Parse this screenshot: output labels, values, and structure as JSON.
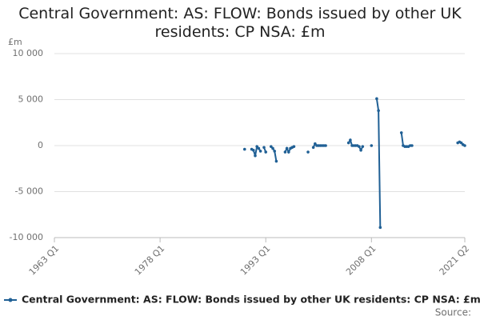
{
  "chart_data": {
    "type": "line",
    "title": "Central Government: AS: FLOW: Bonds issued by other UK residents: CP NSA: £m",
    "y_label": "£m",
    "source": "Source:",
    "categories": [
      "1963 Q1",
      null,
      null,
      null,
      null,
      null,
      null,
      null,
      null,
      null,
      null,
      null,
      null,
      null,
      null,
      null,
      null,
      null,
      null,
      null,
      null,
      null,
      null,
      null,
      null,
      null,
      null,
      null,
      null,
      null,
      null,
      null,
      null,
      null,
      null,
      null,
      null,
      null,
      null,
      null,
      null,
      null,
      null,
      null,
      null,
      null,
      null,
      null,
      null,
      null,
      null,
      null,
      null,
      null,
      null,
      null,
      null,
      null,
      null,
      null,
      "1978 Q1",
      null,
      null,
      null,
      null,
      null,
      null,
      null,
      null,
      null,
      null,
      null,
      null,
      null,
      null,
      null,
      null,
      null,
      null,
      null,
      null,
      null,
      null,
      null,
      null,
      null,
      null,
      null,
      null,
      null,
      null,
      null,
      null,
      null,
      null,
      null,
      null,
      null,
      null,
      null,
      null,
      null,
      null,
      null,
      null,
      null,
      null,
      null,
      null,
      null,
      null,
      null,
      null,
      null,
      null,
      null,
      null,
      null,
      null,
      null,
      "1993 Q1",
      null,
      null,
      null,
      null,
      null,
      null,
      null,
      null,
      null,
      null,
      null,
      null,
      null,
      null,
      null,
      null,
      null,
      null,
      null,
      null,
      null,
      null,
      null,
      null,
      null,
      null,
      null,
      null,
      null,
      null,
      null,
      null,
      null,
      null,
      null,
      null,
      null,
      null,
      null,
      null,
      null,
      null,
      null,
      null,
      null,
      null,
      null,
      null,
      null,
      null,
      null,
      null,
      null,
      null,
      null,
      null,
      null,
      null,
      null,
      "2008 Q1",
      null,
      null,
      null,
      null,
      null,
      null,
      null,
      null,
      null,
      null,
      null,
      null,
      null,
      null,
      null,
      null,
      null,
      null,
      null,
      null,
      null,
      null,
      null,
      null,
      null,
      null,
      null,
      null,
      null,
      null,
      null,
      null,
      null,
      null,
      null,
      null,
      null,
      null,
      null,
      null,
      null,
      null,
      null,
      null,
      null,
      null,
      null,
      null,
      null,
      null,
      null,
      null,
      "2021 Q2"
    ],
    "series": [
      {
        "name": "Central Government: AS: FLOW: Bonds issued by other UK residents: CP NSA: £m",
        "color": "#206095",
        "values": [
          null,
          null,
          null,
          null,
          null,
          null,
          null,
          null,
          null,
          null,
          null,
          null,
          null,
          null,
          null,
          null,
          null,
          null,
          null,
          null,
          null,
          null,
          null,
          null,
          null,
          null,
          null,
          null,
          null,
          null,
          null,
          null,
          null,
          null,
          null,
          null,
          null,
          null,
          null,
          null,
          null,
          null,
          null,
          null,
          null,
          null,
          null,
          null,
          null,
          null,
          null,
          null,
          null,
          null,
          null,
          null,
          null,
          null,
          null,
          null,
          null,
          null,
          null,
          null,
          null,
          null,
          null,
          null,
          null,
          null,
          null,
          null,
          null,
          null,
          null,
          null,
          null,
          null,
          null,
          null,
          null,
          null,
          null,
          null,
          null,
          null,
          null,
          null,
          null,
          null,
          null,
          null,
          null,
          null,
          null,
          null,
          null,
          null,
          null,
          null,
          null,
          null,
          null,
          null,
          null,
          null,
          null,
          null,
          -400,
          null,
          null,
          null,
          -400,
          -500,
          -1100,
          -100,
          -300,
          -600,
          null,
          -200,
          -700,
          null,
          null,
          -100,
          -300,
          -600,
          -1700,
          null,
          null,
          null,
          null,
          -700,
          -300,
          -700,
          -300,
          -200,
          -100,
          null,
          null,
          null,
          null,
          null,
          null,
          null,
          -700,
          null,
          null,
          -200,
          200,
          0,
          0,
          0,
          0,
          0,
          0,
          null,
          null,
          null,
          null,
          null,
          null,
          null,
          null,
          null,
          null,
          null,
          null,
          300,
          600,
          0,
          0,
          0,
          0,
          -100,
          -500,
          -100,
          null,
          null,
          null,
          null,
          0,
          null,
          null,
          5100,
          3800,
          -8900,
          null,
          null,
          null,
          null,
          null,
          null,
          null,
          null,
          null,
          null,
          null,
          1400,
          0,
          -100,
          -100,
          -100,
          0,
          0,
          null,
          null,
          null,
          null,
          null,
          null,
          null,
          null,
          null,
          null,
          null,
          null,
          null,
          null,
          null,
          null,
          null,
          null,
          null,
          null,
          null,
          null,
          null,
          null,
          null,
          300,
          400,
          300,
          100,
          0
        ]
      }
    ],
    "ylim": [
      -10000,
      10000
    ],
    "yticks": [
      {
        "value": -10000,
        "label": "-10 000"
      },
      {
        "value": -5000,
        "label": "-5 000"
      },
      0,
      {
        "value": 5000,
        "label": "5 000"
      },
      {
        "value": 10000,
        "label": "10 000"
      }
    ],
    "grid": true,
    "legend": "bottom"
  }
}
